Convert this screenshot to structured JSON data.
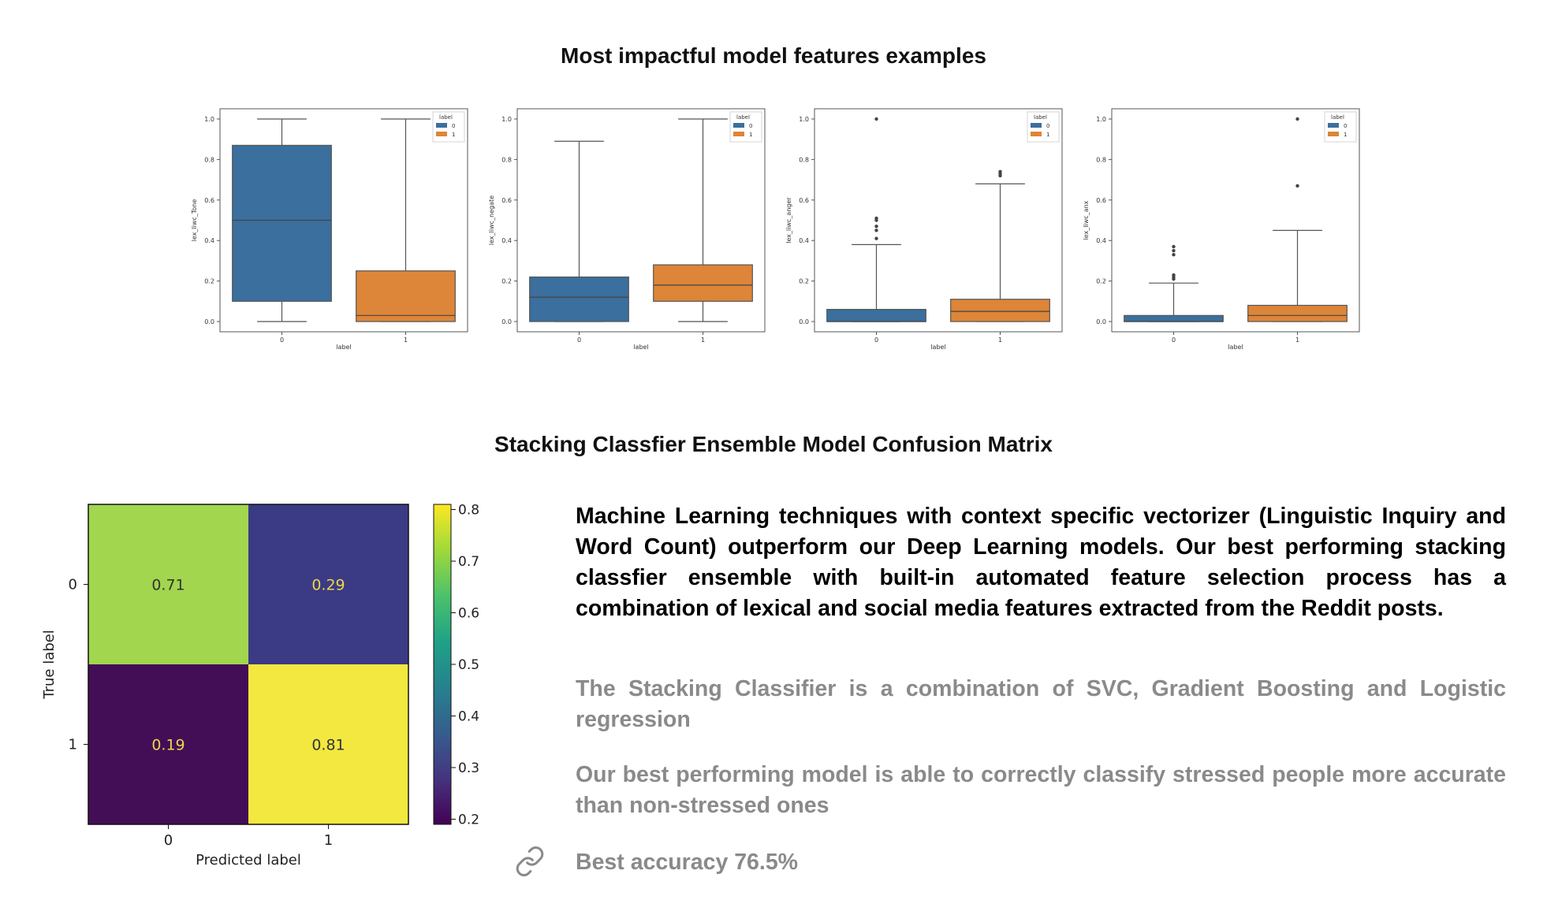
{
  "titles": {
    "features": "Most impactful model features examples",
    "confusion": "Stacking Classfier Ensemble Model Confusion Matrix"
  },
  "colors": {
    "class0": "#3a6f9e",
    "class1": "#dd8538"
  },
  "chart_data": [
    {
      "type": "box",
      "xlabel": "label",
      "ylabel": "lex_liwc_Tone",
      "categories": [
        "0",
        "1"
      ],
      "ylim": [
        0,
        1.0
      ],
      "yticks": [
        "0.0",
        "0.2",
        "0.4",
        "0.6",
        "0.8",
        "1.0"
      ],
      "legend": {
        "title": "label",
        "entries": [
          "0",
          "1"
        ],
        "placement": "top-right"
      },
      "boxes": [
        {
          "category": "0",
          "q1": 0.1,
          "median": 0.5,
          "q3": 0.87,
          "whisker_low": 0.0,
          "whisker_high": 1.0,
          "outliers": []
        },
        {
          "category": "1",
          "q1": 0.0,
          "median": 0.03,
          "q3": 0.25,
          "whisker_low": 0.0,
          "whisker_high": 1.0,
          "outliers": []
        }
      ]
    },
    {
      "type": "box",
      "xlabel": "label",
      "ylabel": "lex_liwc_negate",
      "categories": [
        "0",
        "1"
      ],
      "ylim": [
        0,
        1.0
      ],
      "yticks": [
        "0.0",
        "0.2",
        "0.4",
        "0.6",
        "0.8",
        "1.0"
      ],
      "legend": {
        "title": "label",
        "entries": [
          "0",
          "1"
        ],
        "placement": "top-right"
      },
      "boxes": [
        {
          "category": "0",
          "q1": 0.0,
          "median": 0.12,
          "q3": 0.22,
          "whisker_low": 0.0,
          "whisker_high": 0.89,
          "outliers": []
        },
        {
          "category": "1",
          "q1": 0.1,
          "median": 0.18,
          "q3": 0.28,
          "whisker_low": 0.0,
          "whisker_high": 1.0,
          "outliers": []
        }
      ]
    },
    {
      "type": "box",
      "xlabel": "label",
      "ylabel": "lex_liwc_anger",
      "categories": [
        "0",
        "1"
      ],
      "ylim": [
        0,
        1.0
      ],
      "yticks": [
        "0.0",
        "0.2",
        "0.4",
        "0.6",
        "0.8",
        "1.0"
      ],
      "legend": {
        "title": "label",
        "entries": [
          "0",
          "1"
        ],
        "placement": "top-right"
      },
      "boxes": [
        {
          "category": "0",
          "q1": 0.0,
          "median": 0.0,
          "q3": 0.06,
          "whisker_low": 0.0,
          "whisker_high": 0.38,
          "outliers": [
            0.41,
            0.45,
            0.47,
            0.5,
            0.51,
            1.0
          ]
        },
        {
          "category": "1",
          "q1": 0.0,
          "median": 0.05,
          "q3": 0.11,
          "whisker_low": 0.0,
          "whisker_high": 0.68,
          "outliers": [
            0.72,
            0.73,
            0.74
          ]
        }
      ]
    },
    {
      "type": "box",
      "xlabel": "label",
      "ylabel": "lex_liwc_anx",
      "categories": [
        "0",
        "1"
      ],
      "ylim": [
        0,
        1.0
      ],
      "yticks": [
        "0.0",
        "0.2",
        "0.4",
        "0.6",
        "0.8",
        "1.0"
      ],
      "legend": {
        "title": "label",
        "entries": [
          "0",
          "1"
        ],
        "placement": "top-right"
      },
      "boxes": [
        {
          "category": "0",
          "q1": 0.0,
          "median": 0.0,
          "q3": 0.03,
          "whisker_low": 0.0,
          "whisker_high": 0.19,
          "outliers": [
            0.21,
            0.22,
            0.23,
            0.33,
            0.35,
            0.37
          ]
        },
        {
          "category": "1",
          "q1": 0.0,
          "median": 0.03,
          "q3": 0.08,
          "whisker_low": 0.0,
          "whisker_high": 0.45,
          "outliers": [
            0.67,
            1.0
          ]
        }
      ]
    },
    {
      "type": "heatmap",
      "xlabel": "Predicted label",
      "ylabel": "True label",
      "x": [
        "0",
        "1"
      ],
      "y": [
        "0",
        "1"
      ],
      "values": [
        [
          0.71,
          0.29
        ],
        [
          0.19,
          0.81
        ]
      ],
      "cell_labels": [
        [
          "0.71",
          "0.29"
        ],
        [
          "0.19",
          "0.81"
        ]
      ],
      "cell_colors": [
        [
          "#a2d64e",
          "#3b3a84"
        ],
        [
          "#440e56",
          "#f2e840"
        ]
      ],
      "colorbar": {
        "ticks": [
          "0.2",
          "0.3",
          "0.4",
          "0.5",
          "0.6",
          "0.7",
          "0.8"
        ],
        "min": 0.19,
        "max": 0.81,
        "colormap": "viridis"
      }
    }
  ],
  "text": {
    "main": "Machine Learning techniques with context specific vectorizer (Linguistic Inquiry and Word Count) outperform our Deep Learning models. Our best performing stacking classfier ensemble with built-in automated feature selection process has a combination of lexical and social media features extracted from the Reddit posts.",
    "point1": "The Stacking Classifier is a combination of SVC, Gradient Boosting and Logistic regression",
    "point2": "Our best performing model is able to correctly classify stressed people more accurate than non-stressed ones",
    "point3": "Best accuracy 76.5%"
  },
  "icons": {
    "link": "link-icon"
  }
}
